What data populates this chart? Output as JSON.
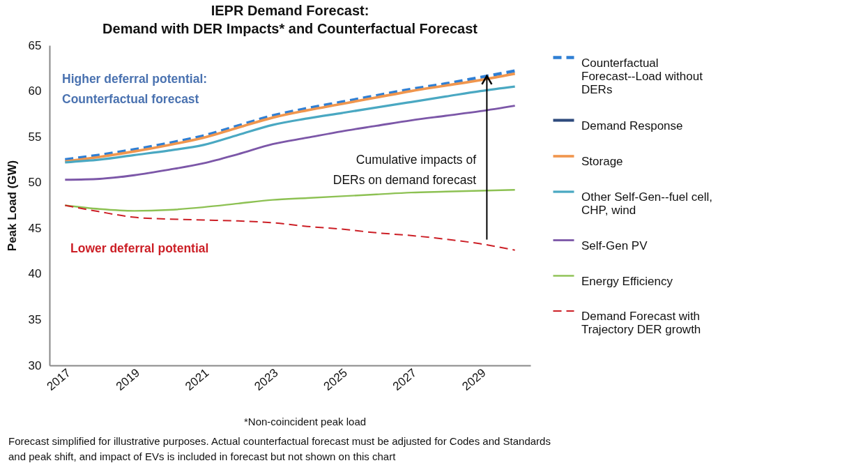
{
  "chart_data": {
    "type": "line",
    "title": "IEPR Demand Forecast:",
    "subtitle": "Demand with DER Impacts* and Counterfactual Forecast",
    "ylabel": "Peak Load (GW)",
    "categories": [
      "2017",
      null,
      "2019",
      null,
      "2021",
      null,
      "2023",
      null,
      "2025",
      null,
      "2027",
      null,
      "2029",
      null
    ],
    "ylim": [
      30,
      65
    ],
    "yticks": [
      30,
      35,
      40,
      45,
      50,
      55,
      60,
      65
    ],
    "legend": "right",
    "series": [
      {
        "name": "Counterfactual Forecast--Load without DERs",
        "color": "#2f7fd4",
        "line_style": "dashed",
        "values": [
          52.5,
          53.0,
          53.6,
          54.3,
          55.1,
          56.2,
          57.3,
          58.1,
          58.8,
          59.5,
          60.2,
          60.8,
          61.5,
          62.2
        ]
      },
      {
        "name": "Demand Response",
        "color": "#2e4a7d",
        "line_style": "solid",
        "values": [
          null,
          null,
          null,
          null,
          null,
          null,
          null,
          null,
          null,
          null,
          null,
          null,
          null,
          null
        ]
      },
      {
        "name": "Storage",
        "color": "#f0964e",
        "line_style": "solid",
        "values": [
          52.3,
          52.8,
          53.4,
          54.1,
          54.9,
          56.0,
          57.1,
          57.9,
          58.6,
          59.3,
          60.0,
          60.6,
          61.2,
          61.9
        ]
      },
      {
        "name": "Other Self-Gen--fuel cell, CHP, wind",
        "color": "#4aa8c2",
        "line_style": "solid",
        "values": [
          52.2,
          52.5,
          53.0,
          53.5,
          54.1,
          55.2,
          56.3,
          57.0,
          57.6,
          58.2,
          58.8,
          59.4,
          60.0,
          60.5
        ]
      },
      {
        "name": "Self-Gen PV",
        "color": "#7c57a8",
        "line_style": "solid",
        "values": [
          50.3,
          50.4,
          50.8,
          51.4,
          52.1,
          53.1,
          54.2,
          54.9,
          55.6,
          56.2,
          56.8,
          57.3,
          57.8,
          58.4
        ]
      },
      {
        "name": "Energy Efficiency",
        "color": "#8dc153",
        "line_style": "solid",
        "values": [
          47.5,
          47.1,
          46.9,
          47.0,
          47.3,
          47.7,
          48.1,
          48.3,
          48.5,
          48.7,
          48.9,
          49.0,
          49.1,
          49.2
        ]
      },
      {
        "name": "Demand Forecast with Trajectory DER growth",
        "color": "#cc1f26",
        "line_style": "dashed",
        "values": [
          47.5,
          46.8,
          46.2,
          46.0,
          45.9,
          45.8,
          45.6,
          45.2,
          44.9,
          44.5,
          44.2,
          43.8,
          43.3,
          42.6
        ]
      }
    ],
    "annotations": [
      "Higher deferral potential:\nCounterfactual forecast",
      "Lower deferral potential",
      "Cumulative impacts of\nDERs on demand forecast",
      "*Non-coincident peak load",
      "Forecast simplified for illustrative purposes. Actual counterfactual forecast must be adjusted for Codes and Standards\nand peak shift, and impact of EVs is included in forecast but not shown on this chart"
    ]
  }
}
